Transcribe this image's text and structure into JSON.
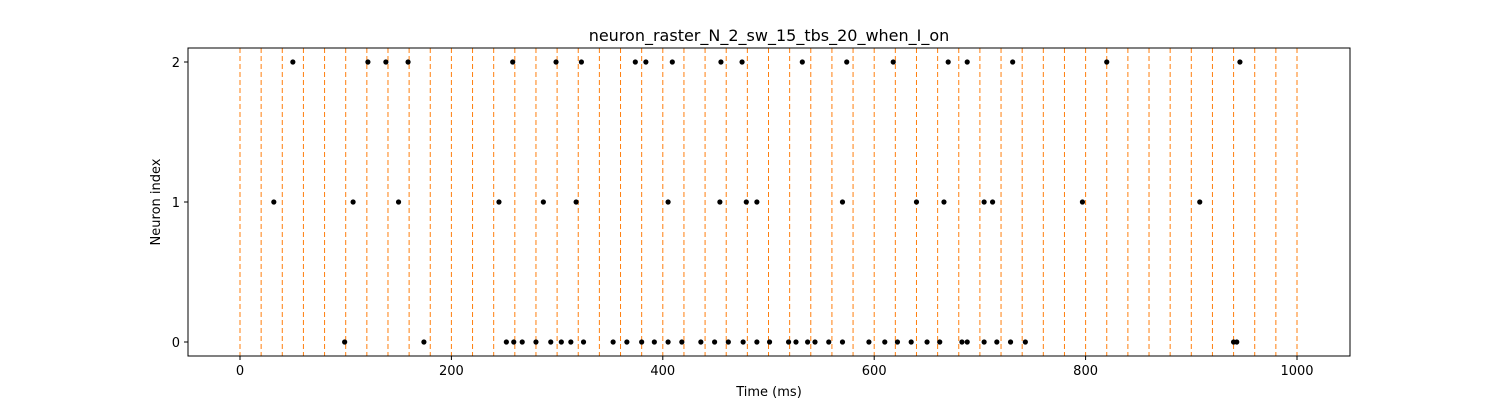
{
  "chart_data": {
    "type": "scatter",
    "title": "neuron_raster_N_2_sw_15_tbs_20_when_I_on",
    "xlabel": "Time (ms)",
    "ylabel": "Neuron index",
    "xlim": [
      -50,
      1050
    ],
    "ylim": [
      -0.1,
      2.1
    ],
    "xticks": [
      0,
      200,
      400,
      600,
      800,
      1000
    ],
    "yticks": [
      0,
      1,
      2
    ],
    "grid": false,
    "legend": "none",
    "marker_color": "#000000",
    "vline_color": "#ff7f0e",
    "vlines": [
      0,
      20,
      40,
      60,
      80,
      100,
      120,
      140,
      160,
      180,
      200,
      220,
      240,
      260,
      280,
      300,
      320,
      340,
      360,
      380,
      400,
      420,
      440,
      460,
      480,
      500,
      520,
      540,
      560,
      580,
      600,
      620,
      640,
      660,
      680,
      700,
      720,
      740,
      760,
      780,
      800,
      820,
      840,
      860,
      880,
      900,
      920,
      940,
      960,
      980,
      1000
    ],
    "series": [
      {
        "neuron": 2,
        "x": [
          50,
          121,
          138,
          159,
          258,
          299,
          323,
          374,
          384,
          409,
          455,
          475,
          532,
          574,
          618,
          670,
          688,
          731,
          820,
          946
        ]
      },
      {
        "neuron": 1,
        "x": [
          32,
          107,
          150,
          245,
          287,
          318,
          405,
          454,
          479,
          489,
          570,
          640,
          666,
          704,
          712,
          797,
          908
        ]
      },
      {
        "neuron": 0,
        "x": [
          99,
          174,
          252,
          259,
          267,
          280,
          294,
          304,
          313,
          325,
          353,
          366,
          380,
          392,
          405,
          418,
          436,
          449,
          462,
          476,
          489,
          501,
          519,
          526,
          537,
          544,
          557,
          570,
          595,
          610,
          622,
          635,
          650,
          662,
          683,
          688,
          704,
          716,
          729,
          743,
          940,
          943
        ]
      }
    ]
  }
}
